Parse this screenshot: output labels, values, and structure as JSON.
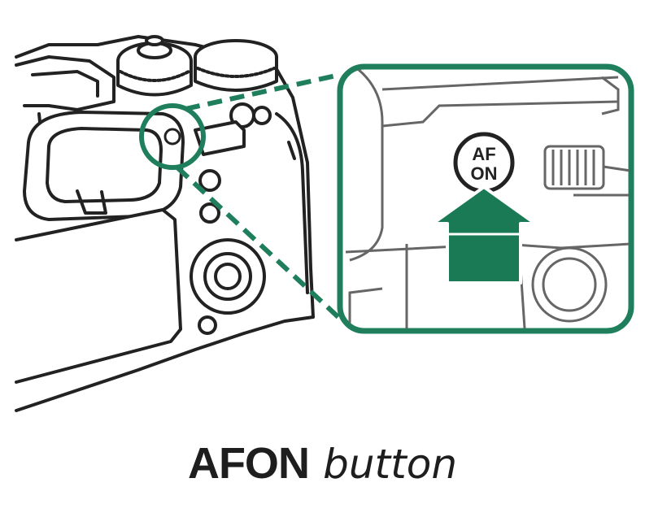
{
  "caption": {
    "button_name": "AFON",
    "suffix": "button"
  },
  "inset": {
    "button_label_line1": "AF",
    "button_label_line2": "ON"
  },
  "colors": {
    "accent_green": "#1f7f5c",
    "arrow_green": "#1a7a55",
    "outline": "#222222",
    "inset_line": "#555555",
    "background": "#ffffff"
  }
}
